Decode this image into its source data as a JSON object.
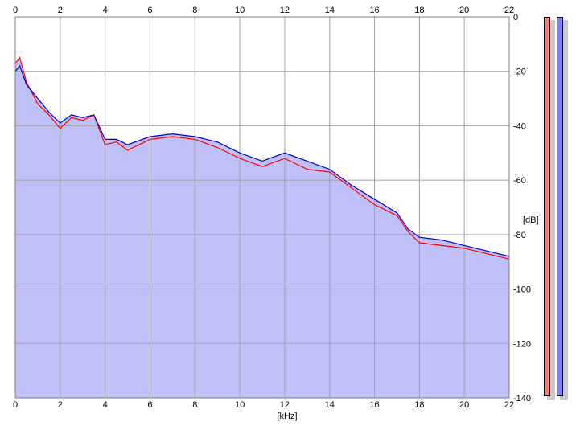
{
  "chart_data": {
    "type": "area",
    "xlabel": "[kHz]",
    "ylabel": "[dB]",
    "xlim": [
      0,
      22
    ],
    "ylim": [
      -140,
      0
    ],
    "x_ticks": [
      "0",
      "2",
      "4",
      "6",
      "8",
      "10",
      "12",
      "14",
      "16",
      "18",
      "20",
      "22"
    ],
    "y_ticks": [
      "0",
      "-20",
      "-40",
      "-60",
      "-80",
      "-100",
      "-120",
      "-140"
    ],
    "grid": true,
    "series": [
      {
        "color": "#ff0000",
        "x": [
          0,
          0.2,
          0.5,
          1,
          1.5,
          2,
          2.5,
          3,
          3.5,
          4,
          4.5,
          5,
          6,
          7,
          8,
          9,
          10,
          11,
          12,
          13,
          14,
          14.5,
          15,
          16,
          17,
          17.5,
          18,
          19,
          20,
          21,
          22
        ],
        "values": [
          -17,
          -15,
          -24,
          -32,
          -36,
          -41,
          -37,
          -38,
          -36,
          -47,
          -46,
          -49,
          -45,
          -44,
          -45,
          -48,
          -52,
          -55,
          -52,
          -56,
          -57,
          -60,
          -63,
          -69,
          -73,
          -79,
          -83,
          -84,
          -85,
          -87,
          -89
        ]
      },
      {
        "color": "#0000cc",
        "x": [
          0,
          0.2,
          0.5,
          1,
          1.5,
          2,
          2.5,
          3,
          3.5,
          4,
          4.5,
          5,
          6,
          7,
          8,
          9,
          10,
          11,
          12,
          13,
          14,
          14.5,
          15,
          16,
          17,
          17.5,
          18,
          19,
          20,
          21,
          22
        ],
        "values": [
          -20,
          -18,
          -25,
          -30,
          -35,
          -39,
          -36,
          -37,
          -36,
          -45,
          -45,
          -47,
          -44,
          -43,
          -44,
          -46,
          -50,
          -53,
          -50,
          -53,
          -56,
          -59,
          -62,
          -67,
          -72,
          -78,
          -81,
          -82,
          -84,
          -86,
          -88
        ]
      }
    ],
    "area_fill_color": "#c0c0f8",
    "meters": [
      {
        "color": "#f08080"
      },
      {
        "color": "#8080ff"
      }
    ]
  }
}
